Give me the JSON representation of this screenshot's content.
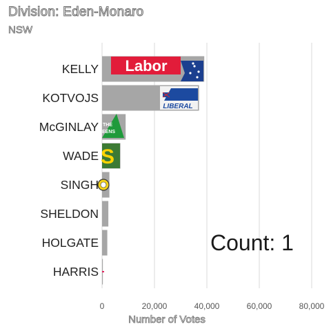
{
  "title": "Division: Eden-Monaro",
  "subtitle": "NSW",
  "counter_text": "Count:  1",
  "chart_data": {
    "type": "bar",
    "orientation": "horizontal",
    "categories": [
      "KELLY",
      "KOTVOJS",
      "McGINLAY",
      "WADE",
      "SINGH",
      "SHELDON",
      "HOLGATE",
      "HARRIS"
    ],
    "values": [
      39000,
      37000,
      9000,
      7000,
      2800,
      2400,
      2000,
      300
    ],
    "party_logos": [
      "labor",
      "liberal",
      "greens",
      "sustainable",
      "cdp",
      "",
      "",
      "other"
    ],
    "xlabel": "Number of Votes",
    "xlim": [
      0,
      85000
    ],
    "xticks": [
      0,
      20000,
      40000,
      60000,
      80000
    ],
    "xtick_labels": [
      "0",
      "20,000",
      "40,000",
      "60,000",
      "80,000"
    ],
    "bar_color": "#a6a6a6",
    "grid": true,
    "logo_text": {
      "labor": "Labor",
      "liberal": "LIBERAL",
      "greens": "THE GREENS",
      "sustainable": "S"
    }
  }
}
